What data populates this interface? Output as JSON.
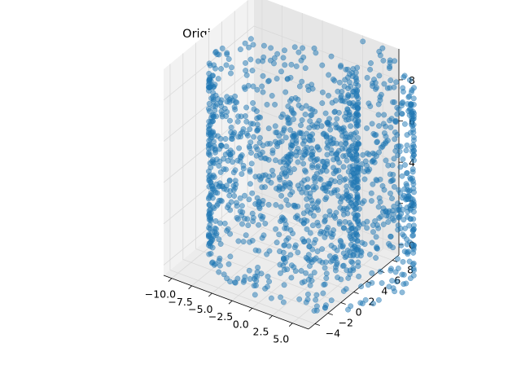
{
  "chart_data": {
    "type": "scatter",
    "projection": "3d",
    "title": "Original Data for SwissRoll",
    "xlabel": "",
    "ylabel": "",
    "zlabel": "",
    "xlim": [
      -11,
      7
    ],
    "ylim": [
      -5,
      9
    ],
    "zlim": [
      -0.5,
      9.5
    ],
    "x_ticks": [
      -10.0,
      -7.5,
      -5.0,
      -2.5,
      0.0,
      2.5,
      5.0
    ],
    "x_tick_labels": [
      "−10.0",
      "−7.5",
      "−5.0",
      "−2.5",
      "0.0",
      "2.5",
      "5.0"
    ],
    "y_ticks": [
      -4,
      -2,
      0,
      2,
      4,
      6,
      8
    ],
    "y_tick_labels": [
      "−4",
      "−2",
      "0",
      "2",
      "4",
      "6",
      "8"
    ],
    "z_ticks": [
      0,
      2,
      4,
      6,
      8
    ],
    "z_tick_labels": [
      "0",
      "2",
      "4",
      "6",
      "8"
    ],
    "grid": true,
    "marker_color": "#1f77b4",
    "marker_alpha": 0.5,
    "series": [
      {
        "generator": "swiss-roll",
        "n_points": 1500,
        "t_range": [
          4.71,
          14.14
        ],
        "height_range": [
          0,
          9
        ],
        "x": "t*cos(t)",
        "y": "t*sin(t)",
        "z": "height"
      }
    ]
  }
}
